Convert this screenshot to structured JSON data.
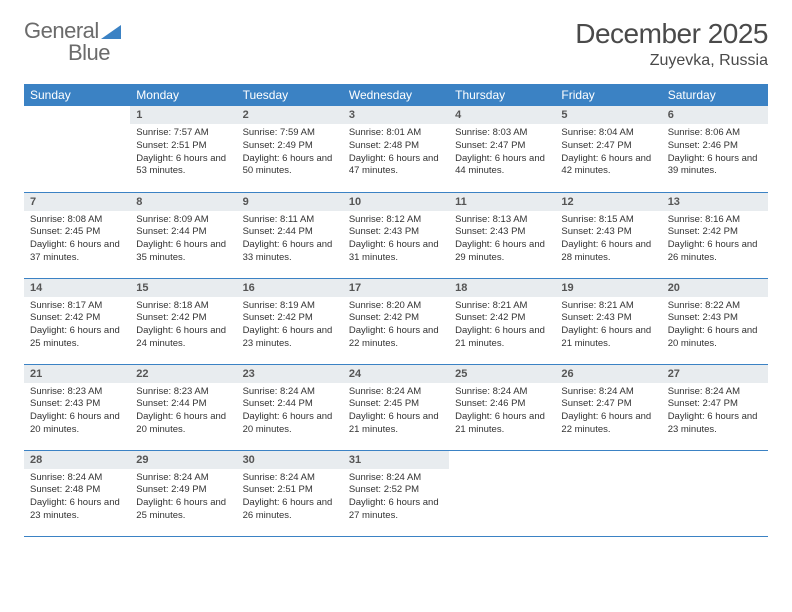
{
  "type": "calendar",
  "logo": {
    "text1": "General",
    "text2": "Blue",
    "icon_color": "#3b82c4"
  },
  "title": "December 2025",
  "location": "Zuyevka, Russia",
  "colors": {
    "header_bg": "#3b82c4",
    "header_text": "#ffffff",
    "daynum_bg": "#e8ecef",
    "row_border": "#3b82c4",
    "body_text": "#333333"
  },
  "fonts": {
    "title_size": 28,
    "location_size": 16,
    "header_size": 12,
    "daynum_size": 11,
    "body_size": 9.5
  },
  "weekdays": [
    "Sunday",
    "Monday",
    "Tuesday",
    "Wednesday",
    "Thursday",
    "Friday",
    "Saturday"
  ],
  "weeks": [
    [
      null,
      {
        "n": "1",
        "sr": "Sunrise: 7:57 AM",
        "ss": "Sunset: 2:51 PM",
        "dl": "Daylight: 6 hours and 53 minutes."
      },
      {
        "n": "2",
        "sr": "Sunrise: 7:59 AM",
        "ss": "Sunset: 2:49 PM",
        "dl": "Daylight: 6 hours and 50 minutes."
      },
      {
        "n": "3",
        "sr": "Sunrise: 8:01 AM",
        "ss": "Sunset: 2:48 PM",
        "dl": "Daylight: 6 hours and 47 minutes."
      },
      {
        "n": "4",
        "sr": "Sunrise: 8:03 AM",
        "ss": "Sunset: 2:47 PM",
        "dl": "Daylight: 6 hours and 44 minutes."
      },
      {
        "n": "5",
        "sr": "Sunrise: 8:04 AM",
        "ss": "Sunset: 2:47 PM",
        "dl": "Daylight: 6 hours and 42 minutes."
      },
      {
        "n": "6",
        "sr": "Sunrise: 8:06 AM",
        "ss": "Sunset: 2:46 PM",
        "dl": "Daylight: 6 hours and 39 minutes."
      }
    ],
    [
      {
        "n": "7",
        "sr": "Sunrise: 8:08 AM",
        "ss": "Sunset: 2:45 PM",
        "dl": "Daylight: 6 hours and 37 minutes."
      },
      {
        "n": "8",
        "sr": "Sunrise: 8:09 AM",
        "ss": "Sunset: 2:44 PM",
        "dl": "Daylight: 6 hours and 35 minutes."
      },
      {
        "n": "9",
        "sr": "Sunrise: 8:11 AM",
        "ss": "Sunset: 2:44 PM",
        "dl": "Daylight: 6 hours and 33 minutes."
      },
      {
        "n": "10",
        "sr": "Sunrise: 8:12 AM",
        "ss": "Sunset: 2:43 PM",
        "dl": "Daylight: 6 hours and 31 minutes."
      },
      {
        "n": "11",
        "sr": "Sunrise: 8:13 AM",
        "ss": "Sunset: 2:43 PM",
        "dl": "Daylight: 6 hours and 29 minutes."
      },
      {
        "n": "12",
        "sr": "Sunrise: 8:15 AM",
        "ss": "Sunset: 2:43 PM",
        "dl": "Daylight: 6 hours and 28 minutes."
      },
      {
        "n": "13",
        "sr": "Sunrise: 8:16 AM",
        "ss": "Sunset: 2:42 PM",
        "dl": "Daylight: 6 hours and 26 minutes."
      }
    ],
    [
      {
        "n": "14",
        "sr": "Sunrise: 8:17 AM",
        "ss": "Sunset: 2:42 PM",
        "dl": "Daylight: 6 hours and 25 minutes."
      },
      {
        "n": "15",
        "sr": "Sunrise: 8:18 AM",
        "ss": "Sunset: 2:42 PM",
        "dl": "Daylight: 6 hours and 24 minutes."
      },
      {
        "n": "16",
        "sr": "Sunrise: 8:19 AM",
        "ss": "Sunset: 2:42 PM",
        "dl": "Daylight: 6 hours and 23 minutes."
      },
      {
        "n": "17",
        "sr": "Sunrise: 8:20 AM",
        "ss": "Sunset: 2:42 PM",
        "dl": "Daylight: 6 hours and 22 minutes."
      },
      {
        "n": "18",
        "sr": "Sunrise: 8:21 AM",
        "ss": "Sunset: 2:42 PM",
        "dl": "Daylight: 6 hours and 21 minutes."
      },
      {
        "n": "19",
        "sr": "Sunrise: 8:21 AM",
        "ss": "Sunset: 2:43 PM",
        "dl": "Daylight: 6 hours and 21 minutes."
      },
      {
        "n": "20",
        "sr": "Sunrise: 8:22 AM",
        "ss": "Sunset: 2:43 PM",
        "dl": "Daylight: 6 hours and 20 minutes."
      }
    ],
    [
      {
        "n": "21",
        "sr": "Sunrise: 8:23 AM",
        "ss": "Sunset: 2:43 PM",
        "dl": "Daylight: 6 hours and 20 minutes."
      },
      {
        "n": "22",
        "sr": "Sunrise: 8:23 AM",
        "ss": "Sunset: 2:44 PM",
        "dl": "Daylight: 6 hours and 20 minutes."
      },
      {
        "n": "23",
        "sr": "Sunrise: 8:24 AM",
        "ss": "Sunset: 2:44 PM",
        "dl": "Daylight: 6 hours and 20 minutes."
      },
      {
        "n": "24",
        "sr": "Sunrise: 8:24 AM",
        "ss": "Sunset: 2:45 PM",
        "dl": "Daylight: 6 hours and 21 minutes."
      },
      {
        "n": "25",
        "sr": "Sunrise: 8:24 AM",
        "ss": "Sunset: 2:46 PM",
        "dl": "Daylight: 6 hours and 21 minutes."
      },
      {
        "n": "26",
        "sr": "Sunrise: 8:24 AM",
        "ss": "Sunset: 2:47 PM",
        "dl": "Daylight: 6 hours and 22 minutes."
      },
      {
        "n": "27",
        "sr": "Sunrise: 8:24 AM",
        "ss": "Sunset: 2:47 PM",
        "dl": "Daylight: 6 hours and 23 minutes."
      }
    ],
    [
      {
        "n": "28",
        "sr": "Sunrise: 8:24 AM",
        "ss": "Sunset: 2:48 PM",
        "dl": "Daylight: 6 hours and 23 minutes."
      },
      {
        "n": "29",
        "sr": "Sunrise: 8:24 AM",
        "ss": "Sunset: 2:49 PM",
        "dl": "Daylight: 6 hours and 25 minutes."
      },
      {
        "n": "30",
        "sr": "Sunrise: 8:24 AM",
        "ss": "Sunset: 2:51 PM",
        "dl": "Daylight: 6 hours and 26 minutes."
      },
      {
        "n": "31",
        "sr": "Sunrise: 8:24 AM",
        "ss": "Sunset: 2:52 PM",
        "dl": "Daylight: 6 hours and 27 minutes."
      },
      null,
      null,
      null
    ]
  ]
}
